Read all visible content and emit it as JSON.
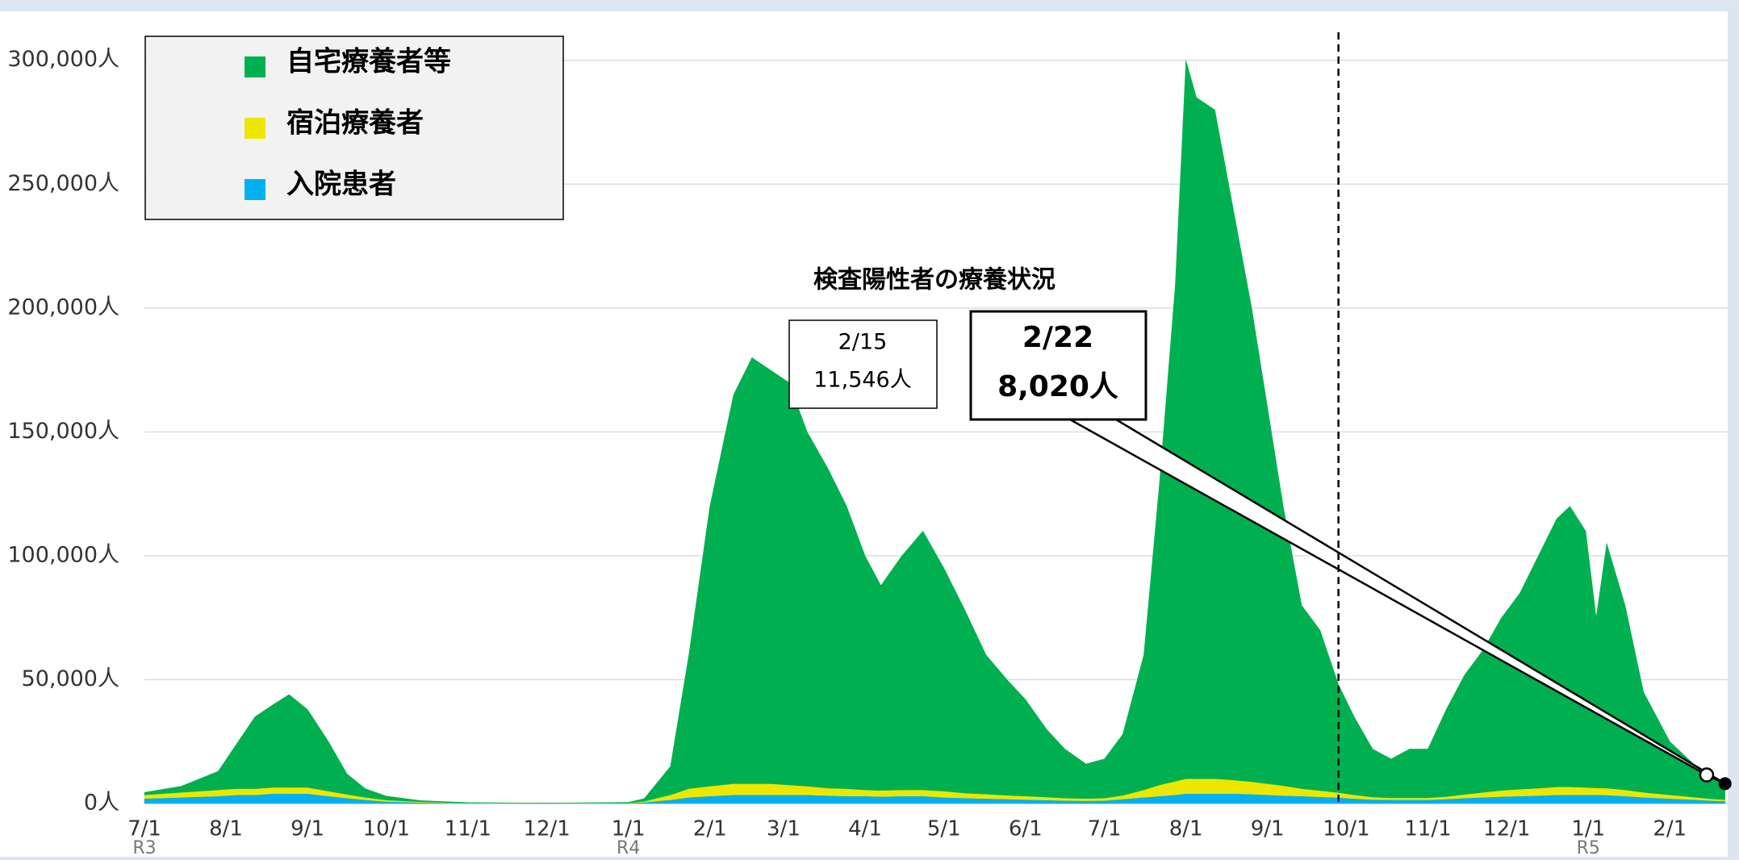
{
  "chart_data": {
    "type": "area",
    "stacked": true,
    "title": "検査陽性者の療養状況",
    "x": [
      0,
      14,
      28,
      35,
      42,
      49,
      55,
      62,
      70,
      77,
      84,
      92,
      105,
      123,
      153,
      184,
      190,
      200,
      207,
      215,
      224,
      231,
      238,
      245,
      252,
      260,
      267,
      274,
      280,
      288,
      296,
      304,
      312,
      320,
      328,
      335,
      343,
      350,
      358,
      365,
      372,
      380,
      386,
      392,
      396,
      400,
      407,
      414,
      421,
      427,
      433,
      440,
      447,
      454,
      460,
      467,
      474,
      481,
      488,
      495,
      502,
      509,
      516,
      523,
      530,
      537,
      542,
      548,
      552,
      556,
      563,
      570,
      580,
      590,
      597,
      601
    ],
    "series": [
      {
        "name": "自宅療養者等",
        "color": "#00b050",
        "values": [
          1000,
          2500,
          7500,
          18000,
          29000,
          33500,
          37500,
          31500,
          20000,
          8300,
          3500,
          1600,
          500,
          150,
          70,
          200,
          1100,
          11500,
          54000,
          113000,
          157000,
          172000,
          167000,
          162500,
          143000,
          128800,
          114000,
          94500,
          82700,
          94500,
          104500,
          90000,
          73800,
          56200,
          46700,
          39000,
          27400,
          19800,
          14000,
          15800,
          24700,
          54500,
          122500,
          201000,
          290000,
          275000,
          270000,
          230500,
          191200,
          152000,
          112800,
          74000,
          64800,
          43600,
          31500,
          19400,
          15700,
          19700,
          19700,
          35200,
          48300,
          57500,
          69700,
          79200,
          93800,
          108300,
          113300,
          103500,
          68700,
          98800,
          74500,
          40500,
          21500,
          12500,
          8200,
          6420
        ]
      },
      {
        "name": "宿泊療養者",
        "color": "#ede600",
        "values": [
          1500,
          2000,
          2500,
          2500,
          2500,
          2500,
          2500,
          2500,
          2000,
          1500,
          1000,
          600,
          300,
          100,
          50,
          100,
          400,
          2000,
          3500,
          4000,
          4500,
          4500,
          4500,
          4000,
          3500,
          3000,
          3000,
          2500,
          2500,
          2500,
          2500,
          2500,
          2000,
          1800,
          1500,
          1400,
          1200,
          1000,
          900,
          1000,
          1500,
          3000,
          4500,
          5500,
          6000,
          6000,
          6000,
          5500,
          5000,
          4500,
          4000,
          3000,
          2500,
          2000,
          1500,
          1000,
          800,
          800,
          800,
          1000,
          1500,
          2000,
          2500,
          2800,
          3000,
          3200,
          3200,
          3000,
          2800,
          2800,
          2500,
          2000,
          1500,
          1000,
          700,
          600
        ]
      },
      {
        "name": "入院患者",
        "color": "#00b0f0",
        "values": [
          2000,
          2500,
          3000,
          3500,
          3500,
          4000,
          4000,
          4000,
          3000,
          2200,
          1500,
          800,
          400,
          150,
          80,
          200,
          500,
          1500,
          2500,
          3000,
          3500,
          3500,
          3500,
          3500,
          3500,
          3200,
          3000,
          3000,
          2800,
          3000,
          3000,
          2500,
          2200,
          2000,
          1800,
          1600,
          1400,
          1200,
          1100,
          1200,
          1800,
          2500,
          3000,
          3500,
          4000,
          4000,
          4000,
          4000,
          3800,
          3500,
          3200,
          3000,
          2700,
          2400,
          2000,
          1600,
          1500,
          1500,
          1500,
          1800,
          2200,
          2500,
          2800,
          3000,
          3200,
          3500,
          3500,
          3500,
          3500,
          3400,
          3000,
          2500,
          2000,
          1500,
          1100,
          1000
        ]
      }
    ],
    "xlim": [
      0,
      602
    ],
    "xticks": [
      {
        "value": 0,
        "label": "7/1"
      },
      {
        "value": 31,
        "label": "8/1"
      },
      {
        "value": 62,
        "label": "9/1"
      },
      {
        "value": 92,
        "label": "10/1"
      },
      {
        "value": 123,
        "label": "11/1"
      },
      {
        "value": 153,
        "label": "12/1"
      },
      {
        "value": 184,
        "label": "1/1"
      },
      {
        "value": 215,
        "label": "2/1"
      },
      {
        "value": 243,
        "label": "3/1"
      },
      {
        "value": 274,
        "label": "4/1"
      },
      {
        "value": 304,
        "label": "5/1"
      },
      {
        "value": 335,
        "label": "6/1"
      },
      {
        "value": 365,
        "label": "7/1"
      },
      {
        "value": 396,
        "label": "8/1"
      },
      {
        "value": 427,
        "label": "9/1"
      },
      {
        "value": 457,
        "label": "10/1"
      },
      {
        "value": 488,
        "label": "11/1"
      },
      {
        "value": 518,
        "label": "12/1"
      },
      {
        "value": 549,
        "label": "1/1"
      },
      {
        "value": 580,
        "label": "2/1"
      }
    ],
    "eras": [
      {
        "label": "R3",
        "x": 0
      },
      {
        "label": "R4",
        "x": 184
      },
      {
        "label": "R5",
        "x": 549
      }
    ],
    "ylim": [
      0,
      310000
    ],
    "yticks": [
      {
        "value": 0,
        "label": "0人"
      },
      {
        "value": 50000,
        "label": "50,000人"
      },
      {
        "value": 100000,
        "label": "100,000人"
      },
      {
        "value": 150000,
        "label": "150,000人"
      },
      {
        "value": 200000,
        "label": "200,000人"
      },
      {
        "value": 250000,
        "label": "250,000人"
      },
      {
        "value": 300000,
        "label": "300,000人"
      }
    ],
    "grid": true,
    "legend": "upper left",
    "vline_x": 454,
    "annotations": [
      {
        "label": "2/15",
        "text": "11,546人",
        "x": 594,
        "value": 11546
      },
      {
        "label": "2/22",
        "text": "8,020人",
        "x": 601,
        "value": 8020
      }
    ]
  }
}
